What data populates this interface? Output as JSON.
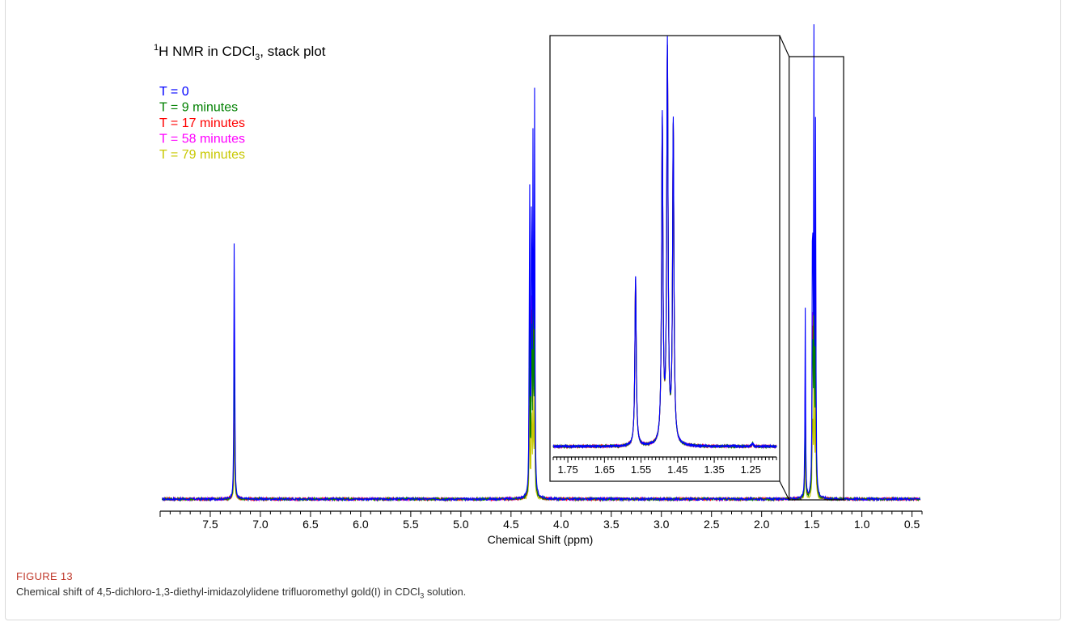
{
  "chart_data": {
    "type": "line",
    "title_prefix": "1",
    "title_main": "H NMR in CDCl",
    "title_sub": "3",
    "title_suffix": ", stack plot",
    "xlabel": "Chemical Shift (ppm)",
    "ylabel": "",
    "xlim": [
      8.0,
      0.4
    ],
    "x_reversed": true,
    "grid": false,
    "legend_position": "top-left",
    "series": [
      {
        "name": "T = 0",
        "color": "#0000ff"
      },
      {
        "name": "T = 9 minutes",
        "color": "#008000"
      },
      {
        "name": "T = 17 minutes",
        "color": "#ff0000"
      },
      {
        "name": "T = 58 minutes",
        "color": "#ff00ff"
      },
      {
        "name": "T = 79 minutes",
        "color": "#c8c800"
      }
    ],
    "peaks": [
      {
        "x": 7.26,
        "height": 0.73
      },
      {
        "x": 4.315,
        "height": 0.81
      },
      {
        "x": 4.295,
        "height": 0.82
      },
      {
        "x": 4.28,
        "height": 0.8
      },
      {
        "x": 4.265,
        "height": 0.88
      },
      {
        "x": 1.565,
        "height": 0.43
      },
      {
        "x": 1.492,
        "height": 0.82
      },
      {
        "x": 1.478,
        "height": 1.0
      },
      {
        "x": 1.462,
        "height": 0.81
      }
    ],
    "ticks_main": [
      "7.5",
      "7.0",
      "6.5",
      "6.0",
      "5.5",
      "5.0",
      "4.5",
      "4.0",
      "3.5",
      "3.0",
      "2.5",
      "2.0",
      "1.5",
      "1.0",
      "0.5"
    ],
    "inset": {
      "xlim": [
        1.79,
        1.18
      ],
      "ticks": [
        "1.75",
        "1.65",
        "1.55",
        "1.45",
        "1.35",
        "1.25"
      ],
      "zoom_range": [
        1.75,
        1.15
      ]
    }
  },
  "caption": {
    "label": "FIGURE 13",
    "text_before": "Chemical shift of 4,5-dichloro-1,3-diethyl-imidazolylidene trifluoromethyl gold(I) in CDCl",
    "text_sub": "3",
    "text_after": " solution."
  }
}
